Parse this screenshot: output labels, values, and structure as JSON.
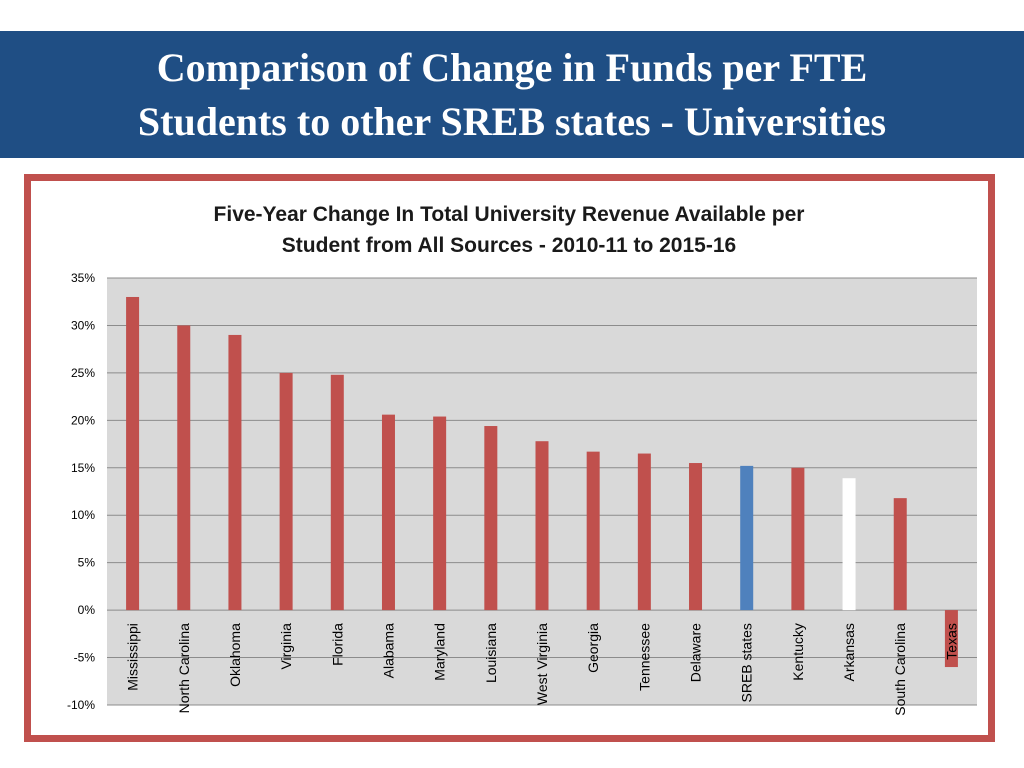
{
  "slide": {
    "title_line1": "Comparison of Change in Funds per FTE",
    "title_line2": "Students to other SREB states - Universities"
  },
  "chart_data": {
    "type": "bar",
    "title_line1": "Five-Year Change In Total University Revenue Available per",
    "title_line2": "Student from All Sources - 2010-11 to 2015-16",
    "xlabel": "",
    "ylabel": "",
    "ylim": [
      -0.1,
      0.35
    ],
    "yticks": [
      -0.1,
      -0.05,
      0,
      0.05,
      0.1,
      0.15,
      0.2,
      0.25,
      0.3,
      0.35
    ],
    "ytick_labels": [
      "-10%",
      "-5%",
      "0%",
      "5%",
      "10%",
      "15%",
      "20%",
      "25%",
      "30%",
      "35%"
    ],
    "grid": true,
    "plot_background": "#d9d9d9",
    "categories": [
      "Mississippi",
      "North Carolina",
      "Oklahoma",
      "Virginia",
      "Florida",
      "Alabama",
      "Maryland",
      "Louisiana",
      "West Virginia",
      "Georgia",
      "Tennessee",
      "Delaware",
      "SREB states",
      "Kentucky",
      "Arkansas",
      "South Carolina",
      "Texas"
    ],
    "values": [
      0.33,
      0.3,
      0.29,
      0.25,
      0.248,
      0.206,
      0.204,
      0.194,
      0.178,
      0.167,
      0.165,
      0.155,
      0.152,
      0.15,
      0.139,
      0.118,
      -0.06
    ],
    "colors": [
      "#c0504d",
      "#c0504d",
      "#c0504d",
      "#c0504d",
      "#c0504d",
      "#c0504d",
      "#c0504d",
      "#c0504d",
      "#c0504d",
      "#c0504d",
      "#c0504d",
      "#c0504d",
      "#4f81bd",
      "#c0504d",
      "#ffffff",
      "#c0504d",
      "#c0504d"
    ]
  }
}
